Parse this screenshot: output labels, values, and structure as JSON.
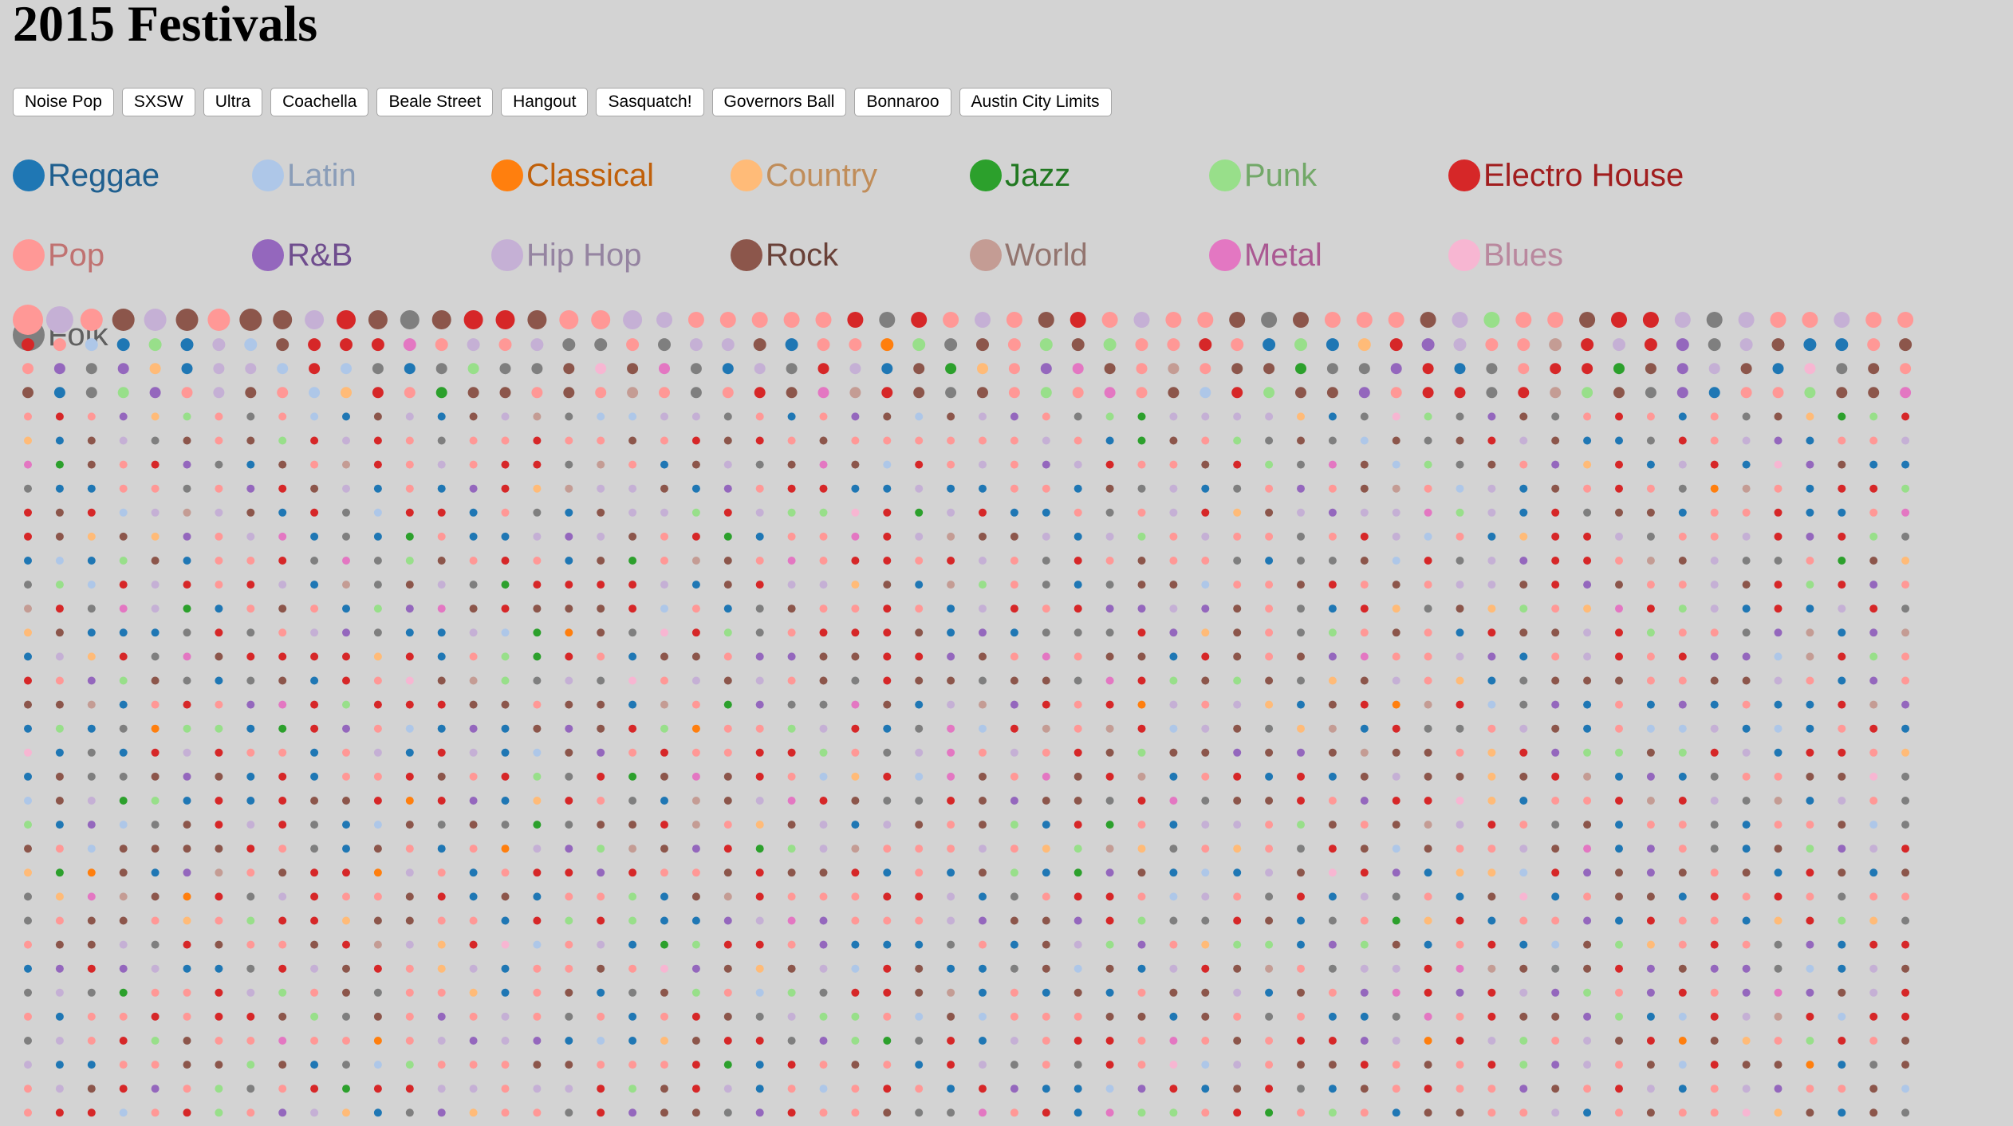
{
  "page": {
    "title": "2015 Festivals"
  },
  "festivals": [
    {
      "id": "noise-pop",
      "label": "Noise Pop"
    },
    {
      "id": "sxsw",
      "label": "SXSW"
    },
    {
      "id": "ultra",
      "label": "Ultra"
    },
    {
      "id": "coachella",
      "label": "Coachella"
    },
    {
      "id": "beale-street",
      "label": "Beale Street"
    },
    {
      "id": "hangout",
      "label": "Hangout"
    },
    {
      "id": "sasquatch",
      "label": "Sasquatch!"
    },
    {
      "id": "governors-ball",
      "label": "Governors Ball"
    },
    {
      "id": "bonnaroo",
      "label": "Bonnaroo"
    },
    {
      "id": "austin-city-limits",
      "label": "Austin City Limits"
    }
  ],
  "genres": [
    {
      "name": "Reggae",
      "color": "#1f77b4",
      "text_color": "#1f5f8f"
    },
    {
      "name": "Latin",
      "color": "#aec7e8",
      "text_color": "#8a9db8"
    },
    {
      "name": "Classical",
      "color": "#ff7f0e",
      "text_color": "#c0600a"
    },
    {
      "name": "Country",
      "color": "#ffbb78",
      "text_color": "#c08d5a"
    },
    {
      "name": "Jazz",
      "color": "#2ca02c",
      "text_color": "#217821"
    },
    {
      "name": "Punk",
      "color": "#98df8a",
      "text_color": "#72a868"
    },
    {
      "name": "Electro House",
      "color": "#d62728",
      "text_color": "#a11d1e"
    },
    {
      "name": "Pop",
      "color": "#ff9896",
      "text_color": "#c07271"
    },
    {
      "name": "R&B",
      "color": "#9467bd",
      "text_color": "#6f4d8e"
    },
    {
      "name": "Hip Hop",
      "color": "#c5b0d5",
      "text_color": "#9584a1"
    },
    {
      "name": "Rock",
      "color": "#8c564b",
      "text_color": "#694138"
    },
    {
      "name": "World",
      "color": "#c49c94",
      "text_color": "#93756f"
    },
    {
      "name": "Metal",
      "color": "#e377c2",
      "text_color": "#aa5992"
    },
    {
      "name": "Blues",
      "color": "#f7b6d2",
      "text_color": "#b9889e"
    },
    {
      "name": "Folk",
      "color": "#7f7f7f",
      "text_color": "#5f5f5f"
    }
  ],
  "chart_data": {
    "type": "scatter",
    "description_columns": 60,
    "first_row_genres": [
      "Pop",
      "Hip Hop",
      "Pop",
      "Rock",
      "Hip Hop",
      "Rock",
      "Pop",
      "Rock",
      "Rock",
      "Hip Hop",
      "Electro House",
      "Rock",
      "Folk",
      "Rock",
      "Electro House",
      "Electro House",
      "Rock",
      "Pop",
      "Pop",
      "Hip Hop",
      "Hip Hop",
      "Pop",
      "Pop",
      "Pop",
      "Pop",
      "Pop",
      "Electro House",
      "Folk",
      "Electro House",
      "Pop",
      "Hip Hop",
      "Pop",
      "Rock",
      "Electro House",
      "Pop",
      "Hip Hop",
      "Pop",
      "Pop",
      "Rock",
      "Folk",
      "Rock",
      "Pop",
      "Pop",
      "Pop",
      "Rock",
      "Hip Hop",
      "Punk",
      "Pop",
      "Pop",
      "Rock",
      "Electro House",
      "Electro House",
      "Hip Hop",
      "Folk",
      "Hip Hop",
      "Pop",
      "Pop",
      "Hip Hop",
      "Pop",
      "Pop"
    ]
  }
}
